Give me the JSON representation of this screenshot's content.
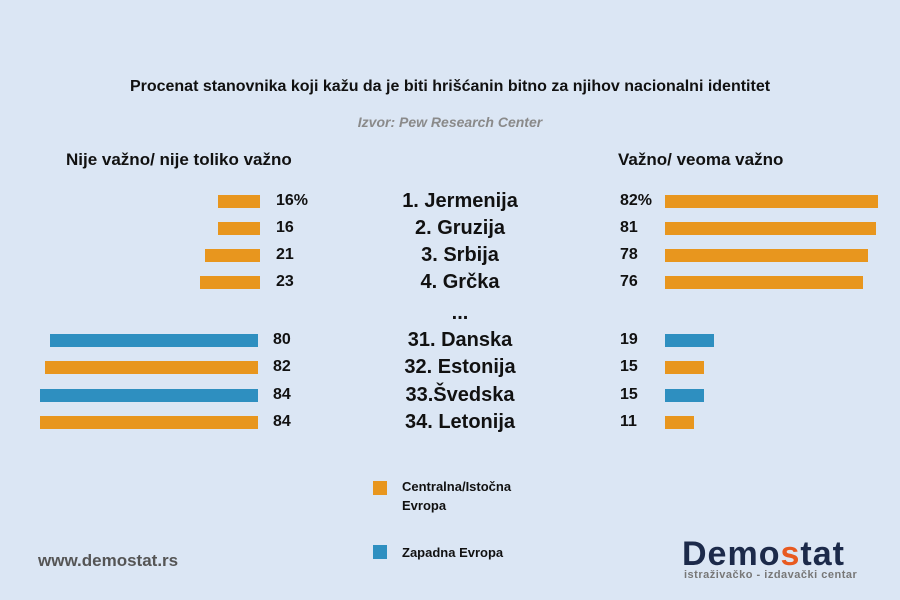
{
  "chart_data": {
    "type": "bar",
    "title": "Procenat stanovnika koji kažu da je biti hrišćanin bitno za njihov nacionalni identitet",
    "source": "Izvor: Pew Research Center",
    "left_header": "Nije važno/ nije toliko važno",
    "right_header": "Važno/ veoma važno",
    "ellipsis": "...",
    "unit": "%",
    "colors": {
      "central_eastern": "#e8961e",
      "western": "#2e8fc0"
    },
    "rows": [
      {
        "label": "1. Jermenija",
        "not_important": 16,
        "important": 82,
        "region": "central_eastern"
      },
      {
        "label": "2. Gruzija",
        "not_important": 16,
        "important": 81,
        "region": "central_eastern"
      },
      {
        "label": "3. Srbija",
        "not_important": 21,
        "important": 78,
        "region": "central_eastern"
      },
      {
        "label": "4. Grčka",
        "not_important": 23,
        "important": 76,
        "region": "central_eastern"
      },
      {
        "label": "31. Danska",
        "not_important": 80,
        "important": 19,
        "region": "western"
      },
      {
        "label": "32. Estonija",
        "not_important": 82,
        "important": 15,
        "region": "central_eastern"
      },
      {
        "label": "33.Švedska",
        "not_important": 84,
        "important": 15,
        "region": "western"
      },
      {
        "label": "34. Letonija",
        "not_important": 84,
        "important": 11,
        "region": "central_eastern"
      }
    ],
    "legend": [
      {
        "key": "central_eastern",
        "label": "Centralna/Istočna Evropa"
      },
      {
        "key": "western",
        "label": "Zapadna Evropa"
      }
    ]
  },
  "footer": {
    "url": "www.demostat.rs",
    "logo_pre": "Demo",
    "logo_s": "s",
    "logo_post": "tat",
    "logo_sub": "istraživačko - izdavački  centar"
  }
}
